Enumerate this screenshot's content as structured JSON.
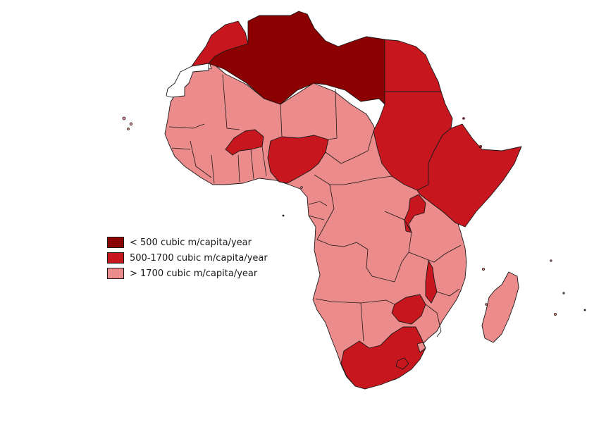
{
  "colors": {
    "scarcity": "#8b0000",
    "stress": "#c8161e",
    "adequate": "#eb8b8b",
    "no_data": "#ffffff",
    "border": "#1a1a1a"
  },
  "legend": {
    "items": [
      {
        "label": "< 500 cubic m/capita/year",
        "class": "scarcity"
      },
      {
        "label": "500-1700 cubic m/capita/year",
        "class": "stress"
      },
      {
        "label": "> 1700 cubic m/capita/year",
        "class": "adequate"
      }
    ]
  },
  "map": {
    "regions": [
      {
        "region": "north-africa-west",
        "class": "stress"
      },
      {
        "region": "north-africa-central",
        "class": "scarcity"
      },
      {
        "region": "northeast-africa",
        "class": "stress"
      },
      {
        "region": "horn-of-africa",
        "class": "stress"
      },
      {
        "region": "west-africa-nigeria",
        "class": "stress"
      },
      {
        "region": "west-africa-burkina",
        "class": "stress"
      },
      {
        "region": "east-africa-malawi",
        "class": "stress"
      },
      {
        "region": "southern-africa-zimbabwe",
        "class": "stress"
      },
      {
        "region": "southern-africa-south",
        "class": "stress"
      },
      {
        "region": "western-sahara",
        "class": "no_data"
      },
      {
        "region": "rest-of-continent",
        "class": "adequate"
      }
    ]
  }
}
